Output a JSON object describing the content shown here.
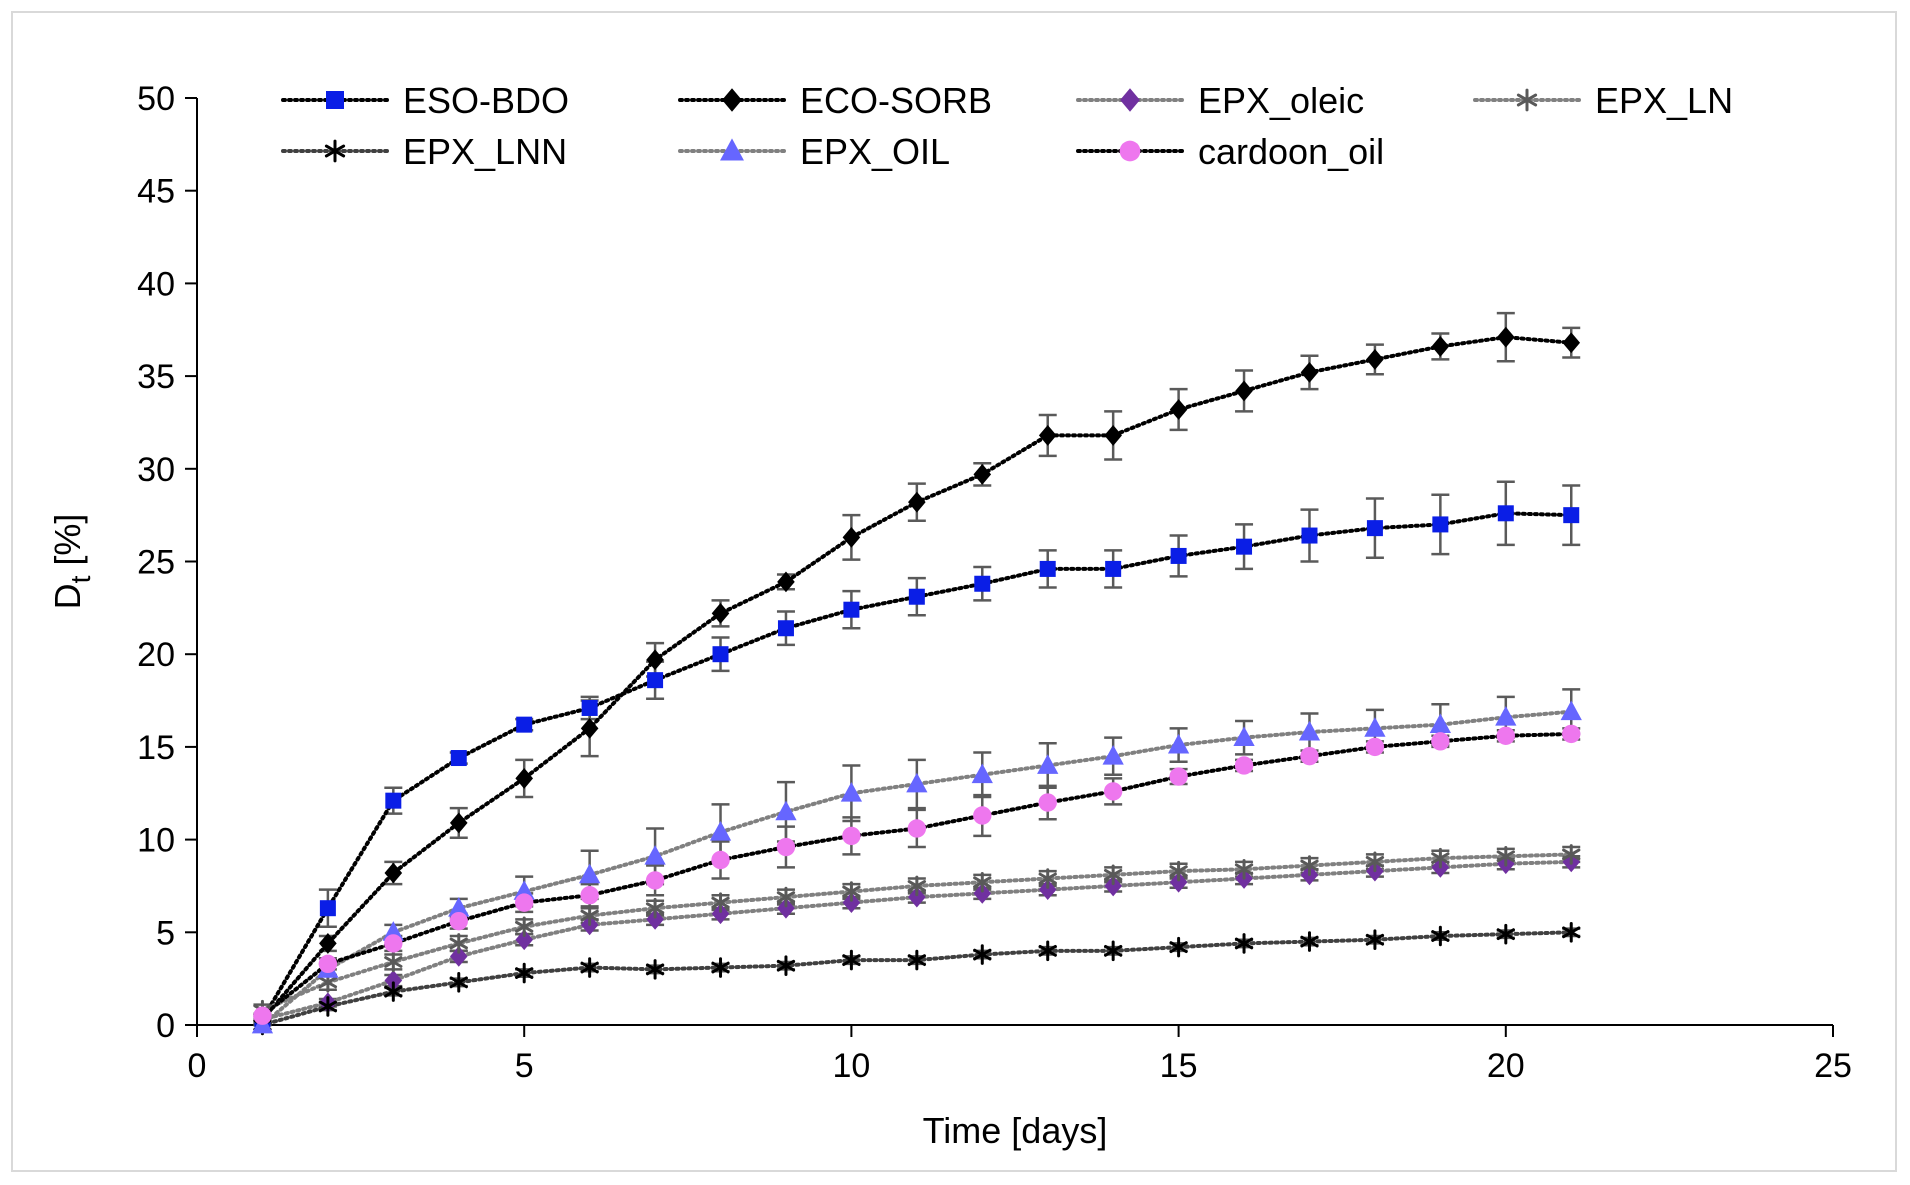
{
  "chart_data": {
    "type": "line",
    "title": "",
    "xlabel": "Time [days]",
    "ylabel_main": "D",
    "ylabel_sub": "t",
    "ylabel_rest": " [%]",
    "xlim": [
      0,
      25
    ],
    "ylim": [
      0,
      50
    ],
    "xticks": [
      0,
      5,
      10,
      15,
      20,
      25
    ],
    "yticks": [
      0,
      5,
      10,
      15,
      20,
      25,
      30,
      35,
      40,
      45,
      50
    ],
    "grid": false,
    "legend_position": "top",
    "x": [
      1,
      2,
      3,
      4,
      5,
      6,
      7,
      8,
      9,
      10,
      11,
      12,
      13,
      14,
      15,
      16,
      17,
      18,
      19,
      20,
      21
    ],
    "series": [
      {
        "name": "ESO-BDO",
        "color": "#0a1ee6",
        "line_color": "#000000",
        "marker": "square",
        "values": [
          0.3,
          6.3,
          12.1,
          14.4,
          16.2,
          17.1,
          18.6,
          20.0,
          21.4,
          22.4,
          23.1,
          23.8,
          24.6,
          24.6,
          25.3,
          25.8,
          26.4,
          26.8,
          27.0,
          27.6,
          27.5
        ],
        "errors": [
          0.3,
          1.0,
          0.7,
          0.3,
          0.3,
          0.6,
          1.0,
          0.9,
          0.9,
          1.0,
          1.0,
          0.9,
          1.0,
          1.0,
          1.1,
          1.2,
          1.4,
          1.6,
          1.6,
          1.7,
          1.6
        ]
      },
      {
        "name": "ECO-SORB",
        "color": "#000000",
        "line_color": "#000000",
        "marker": "diamond",
        "values": [
          0.3,
          4.4,
          8.2,
          10.9,
          13.3,
          16.0,
          19.7,
          22.2,
          23.9,
          26.3,
          28.2,
          29.7,
          31.8,
          31.8,
          33.2,
          34.2,
          35.2,
          35.9,
          36.6,
          37.1,
          36.8
        ],
        "errors": [
          0.3,
          0.4,
          0.6,
          0.8,
          1.0,
          1.5,
          0.9,
          0.7,
          0.4,
          1.2,
          1.0,
          0.6,
          1.1,
          1.3,
          1.1,
          1.1,
          0.9,
          0.8,
          0.7,
          1.3,
          0.8
        ]
      },
      {
        "name": "EPX_oleic",
        "color": "#7030a0",
        "line_color": "#808080",
        "marker": "diamond",
        "values": [
          0.3,
          1.2,
          2.4,
          3.7,
          4.6,
          5.4,
          5.7,
          6.0,
          6.3,
          6.6,
          6.9,
          7.1,
          7.3,
          7.5,
          7.7,
          7.9,
          8.1,
          8.3,
          8.5,
          8.7,
          8.8
        ],
        "errors": [
          0.1,
          0.2,
          0.3,
          0.3,
          0.3,
          0.3,
          0.3,
          0.3,
          0.3,
          0.3,
          0.3,
          0.3,
          0.3,
          0.3,
          0.3,
          0.3,
          0.3,
          0.3,
          0.3,
          0.3,
          0.3
        ]
      },
      {
        "name": "EPX_LN",
        "color": "#595959",
        "line_color": "#808080",
        "marker": "asterisk",
        "values": [
          0.8,
          2.3,
          3.4,
          4.4,
          5.3,
          5.9,
          6.3,
          6.6,
          6.9,
          7.2,
          7.5,
          7.7,
          7.9,
          8.1,
          8.3,
          8.4,
          8.6,
          8.8,
          9.0,
          9.1,
          9.2
        ],
        "errors": [
          0.3,
          0.4,
          0.4,
          0.4,
          0.4,
          0.4,
          0.4,
          0.4,
          0.4,
          0.4,
          0.4,
          0.4,
          0.4,
          0.4,
          0.4,
          0.4,
          0.4,
          0.4,
          0.4,
          0.4,
          0.4
        ]
      },
      {
        "name": "EPX_LNN",
        "color": "#000000",
        "line_color": "#404040",
        "marker": "asterisk",
        "values": [
          0.0,
          1.0,
          1.8,
          2.3,
          2.8,
          3.1,
          3.0,
          3.1,
          3.2,
          3.5,
          3.5,
          3.8,
          4.0,
          4.0,
          4.2,
          4.4,
          4.5,
          4.6,
          4.8,
          4.9,
          5.0
        ],
        "errors": [
          0.1,
          0.2,
          0.2,
          0.2,
          0.2,
          0.2,
          0.2,
          0.2,
          0.2,
          0.2,
          0.2,
          0.2,
          0.2,
          0.2,
          0.2,
          0.2,
          0.2,
          0.2,
          0.2,
          0.2,
          0.2
        ]
      },
      {
        "name": "EPX_OIL",
        "color": "#6666ff",
        "line_color": "#808080",
        "marker": "triangle",
        "values": [
          0.0,
          3.0,
          5.0,
          6.3,
          7.2,
          8.1,
          9.1,
          10.4,
          11.5,
          12.5,
          13.0,
          13.5,
          14.0,
          14.5,
          15.1,
          15.5,
          15.8,
          16.0,
          16.2,
          16.6,
          16.9
        ],
        "errors": [
          0.1,
          0.3,
          0.4,
          0.5,
          0.8,
          1.3,
          1.5,
          1.5,
          1.6,
          1.5,
          1.3,
          1.2,
          1.2,
          1.0,
          0.9,
          0.9,
          1.0,
          1.0,
          1.1,
          1.1,
          1.2
        ]
      },
      {
        "name": "cardoon_oil",
        "color": "#ee77ee",
        "line_color": "#000000",
        "marker": "circle",
        "values": [
          0.5,
          3.3,
          4.4,
          5.6,
          6.6,
          7.0,
          7.8,
          8.9,
          9.6,
          10.2,
          10.6,
          11.3,
          12.0,
          12.6,
          13.4,
          14.0,
          14.5,
          15.0,
          15.3,
          15.6,
          15.7
        ],
        "errors": [
          0.1,
          0.3,
          0.4,
          0.4,
          0.5,
          0.6,
          0.8,
          1.0,
          1.1,
          1.0,
          1.0,
          1.1,
          0.9,
          0.7,
          0.4,
          0.3,
          0.3,
          0.3,
          0.3,
          0.3,
          0.3
        ]
      }
    ]
  }
}
